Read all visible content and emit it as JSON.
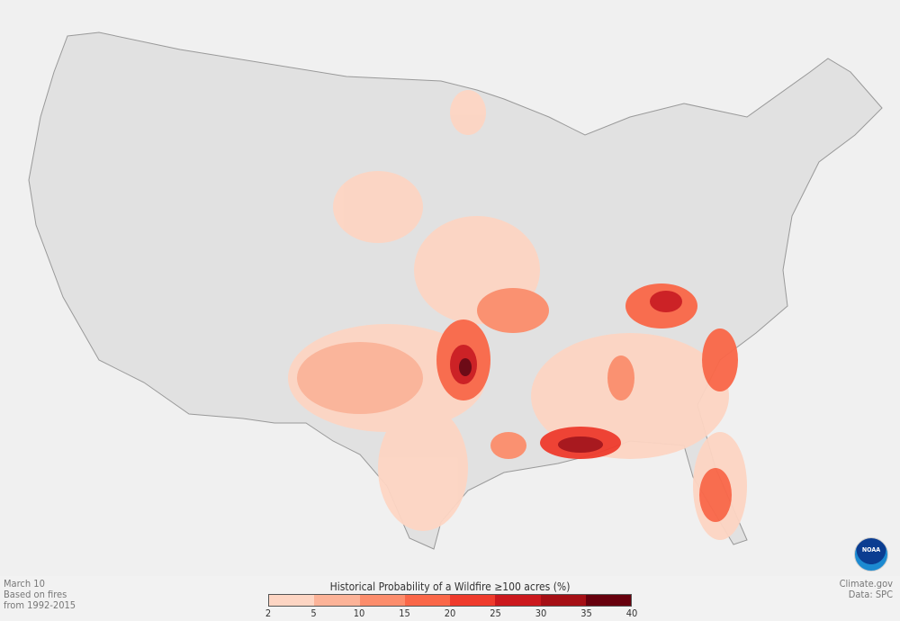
{
  "caption": {
    "date": "March 10",
    "line2": "Based on fires",
    "line3": "from 1992-2015"
  },
  "credit": {
    "site": "Climate.gov",
    "data": "Data: SPC"
  },
  "logo": {
    "text": "NOAA"
  },
  "legend": {
    "title": "Historical Probability of a Wildfire ≥100 acres (%)",
    "ticks": [
      "2",
      "5",
      "10",
      "15",
      "20",
      "25",
      "30",
      "35",
      "40"
    ],
    "colors": [
      "#fdd5c3",
      "#fcb398",
      "#fc8d6c",
      "#fa6748",
      "#ef3b2c",
      "#cb181d",
      "#a50f15",
      "#67000d"
    ]
  },
  "colors": {
    "land": "#e1e1e1",
    "outside": "#f0f0f0",
    "border": "#999999"
  }
}
